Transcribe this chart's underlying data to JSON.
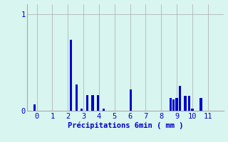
{
  "xlabel": "Précipitations 6min ( mm )",
  "bar_color": "#0000cc",
  "background_color": "#d8f5f0",
  "grid_color": "#aaaaaa",
  "axis_label_color": "#0000cc",
  "ylim": [
    0,
    1.1
  ],
  "yticks": [
    0,
    1
  ],
  "xlim": [
    -0.6,
    12.0
  ],
  "bar_positions": [
    -0.15,
    2.2,
    2.55,
    2.9,
    3.25,
    3.6,
    3.95,
    4.3,
    6.05,
    8.6,
    8.8,
    9.0,
    9.2,
    9.55,
    9.8,
    10.0,
    10.55
  ],
  "bar_heights": [
    0.065,
    0.73,
    0.27,
    0.02,
    0.16,
    0.165,
    0.165,
    0.02,
    0.22,
    0.13,
    0.12,
    0.13,
    0.26,
    0.155,
    0.155,
    0.02,
    0.135
  ],
  "bar_width": 0.15,
  "xticks": [
    0,
    1,
    2,
    3,
    4,
    5,
    6,
    7,
    8,
    9,
    10,
    11
  ],
  "fontsize": 7.5
}
